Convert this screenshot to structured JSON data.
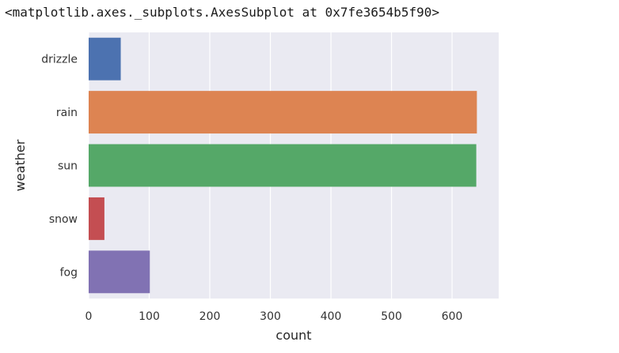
{
  "output": {
    "repr_text": "<matplotlib.axes._subplots.AxesSubplot at 0x7fe3654b5f90>"
  },
  "chart_data": {
    "type": "bar",
    "orientation": "horizontal",
    "categories": [
      "drizzle",
      "rain",
      "sun",
      "snow",
      "fog"
    ],
    "values": [
      53,
      641,
      640,
      26,
      101
    ],
    "colors": [
      "#4c72b0",
      "#dd8452",
      "#55a868",
      "#c44e52",
      "#8172b3"
    ],
    "xlabel": "count",
    "ylabel": "weather",
    "xlim": [
      0,
      677
    ],
    "xticks": [
      0,
      100,
      200,
      300,
      400,
      500,
      600
    ],
    "grid": true,
    "background": "#eaeaf2"
  }
}
